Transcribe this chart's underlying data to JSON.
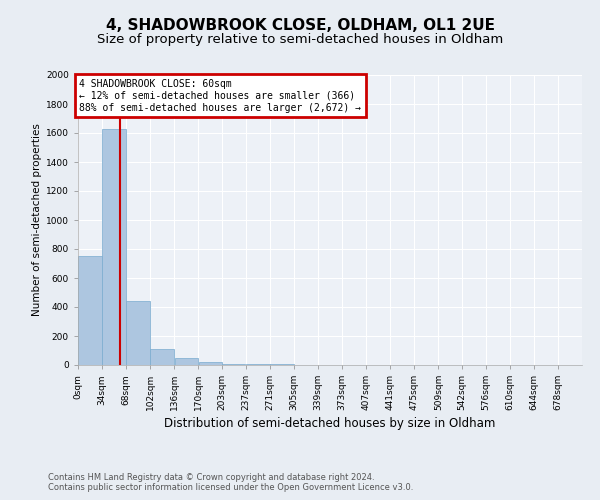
{
  "title": "4, SHADOWBROOK CLOSE, OLDHAM, OL1 2UE",
  "subtitle": "Size of property relative to semi-detached houses in Oldham",
  "xlabel": "Distribution of semi-detached houses by size in Oldham",
  "ylabel": "Number of semi-detached properties",
  "footer_line1": "Contains HM Land Registry data © Crown copyright and database right 2024.",
  "footer_line2": "Contains public sector information licensed under the Open Government Licence v3.0.",
  "bin_labels": [
    "0sqm",
    "34sqm",
    "68sqm",
    "102sqm",
    "136sqm",
    "170sqm",
    "203sqm",
    "237sqm",
    "271sqm",
    "305sqm",
    "339sqm",
    "373sqm",
    "407sqm",
    "441sqm",
    "475sqm",
    "509sqm",
    "542sqm",
    "576sqm",
    "610sqm",
    "644sqm",
    "678sqm"
  ],
  "bin_edges": [
    0,
    34,
    68,
    102,
    136,
    170,
    203,
    237,
    271,
    305,
    339,
    373,
    407,
    441,
    475,
    509,
    542,
    576,
    610,
    644,
    678
  ],
  "bar_values": [
    750,
    1630,
    440,
    110,
    45,
    20,
    10,
    10,
    5,
    3,
    2,
    1,
    1,
    0,
    0,
    0,
    0,
    0,
    0,
    0
  ],
  "bar_color": "#adc6e0",
  "bar_edgecolor": "#7aabcf",
  "property_size": 60,
  "annotation_title": "4 SHADOWBROOK CLOSE: 60sqm",
  "annotation_line1": "← 12% of semi-detached houses are smaller (366)",
  "annotation_line2": "88% of semi-detached houses are larger (2,672) →",
  "annotation_box_edgecolor": "#cc0000",
  "property_line_color": "#cc0000",
  "ylim": [
    0,
    2000
  ],
  "yticks": [
    0,
    200,
    400,
    600,
    800,
    1000,
    1200,
    1400,
    1600,
    1800,
    2000
  ],
  "bg_color": "#e8edf3",
  "plot_bg_color": "#edf1f7",
  "grid_color": "#ffffff",
  "title_fontsize": 11,
  "subtitle_fontsize": 9.5,
  "tick_fontsize": 6.5,
  "ylabel_fontsize": 7.5,
  "xlabel_fontsize": 8.5,
  "annotation_fontsize": 7,
  "footer_fontsize": 6
}
